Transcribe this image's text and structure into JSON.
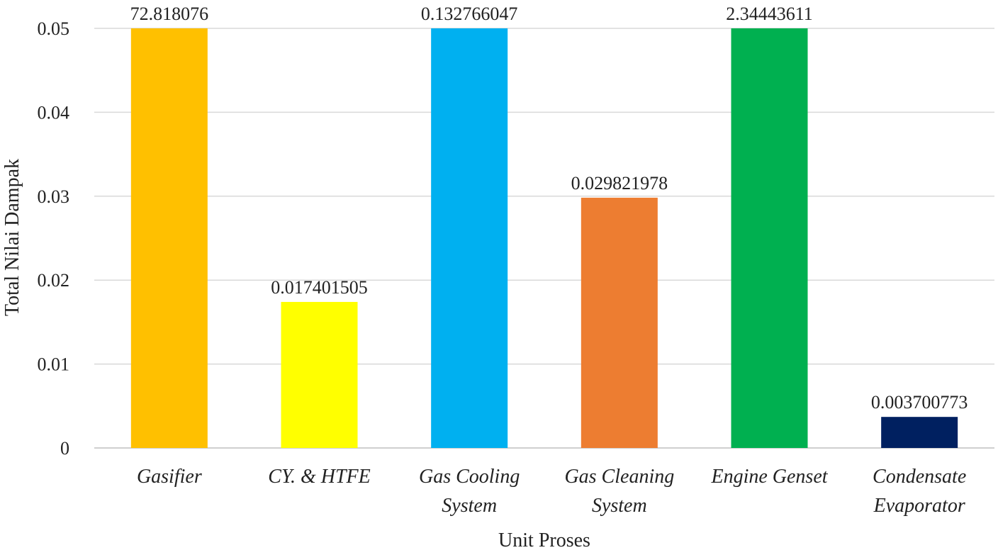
{
  "chart_data": {
    "type": "bar",
    "xlabel": "Unit Proses",
    "ylabel": "Total Nilai Dampak",
    "ylim": [
      0,
      0.05
    ],
    "yticks": [
      "0",
      "0.01",
      "0.02",
      "0.03",
      "0.04",
      "0.05"
    ],
    "grid": true,
    "legend": "none",
    "categories": [
      [
        "Gasifier"
      ],
      [
        "CY. & HTFE"
      ],
      [
        "Gas Cooling",
        "System"
      ],
      [
        "Gas Cleaning",
        "System"
      ],
      [
        "Engine Genset"
      ],
      [
        "Condensate",
        "Evaporator"
      ]
    ],
    "values": [
      72.818076,
      0.017401505,
      0.132766047,
      0.029821978,
      2.34443611,
      0.003700773
    ],
    "value_labels": [
      "72.818076",
      "0.017401505",
      "0.132766047",
      "0.029821978",
      "2.34443611",
      "0.003700773"
    ],
    "colors": [
      "#FFC000",
      "#FFFF00",
      "#00B0F0",
      "#ED7D31",
      "#00B050",
      "#002060"
    ]
  }
}
